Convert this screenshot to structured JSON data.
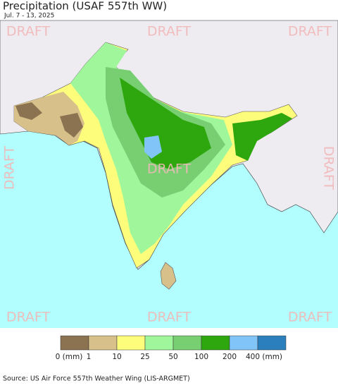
{
  "title": "Precipitation (USAF 557th WW)",
  "subtitle": "Jul. 7 - 13, 2025",
  "watermarks": [
    "DRAFT",
    "DRAFT",
    "DRAFT",
    "DRAFT",
    "DRAFT",
    "DRAFT",
    "DRAFT",
    "DRAFT",
    "DRAFT"
  ],
  "legend": {
    "colors": [
      "#8b7250",
      "#d7c08a",
      "#fdfd7b",
      "#a0f79b",
      "#77cf72",
      "#2ea70e",
      "#81c4f8",
      "#2b7fbd"
    ],
    "labels": [
      "0 (mm)",
      "1",
      "10",
      "25",
      "50",
      "100",
      "200",
      "400 (mm)"
    ]
  },
  "source": "Source: US Air Force 557th Weather Wing (LIS-ARGMET)"
}
